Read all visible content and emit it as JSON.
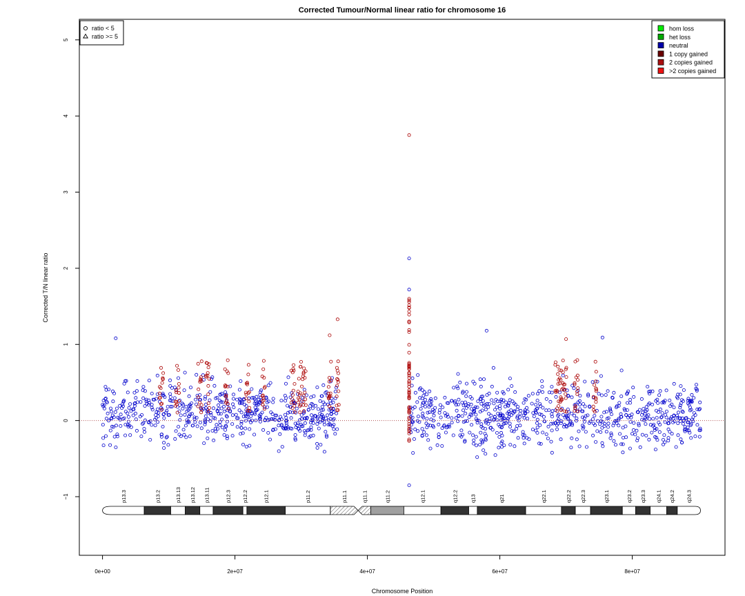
{
  "chart_data": {
    "type": "scatter",
    "title": "Corrected Tumour/Normal linear ratio for chromosome  16",
    "xlabel": "Chromosome Position",
    "ylabel": "Corrected T/N linear ratio",
    "xlim": [
      -3500000,
      94000000
    ],
    "ylim": [
      -1.77,
      5.27
    ],
    "x_ticks": [
      0,
      20000000,
      40000000,
      60000000,
      80000000
    ],
    "x_tick_labels": [
      "0e+00",
      "2e+07",
      "4e+07",
      "6e+07",
      "8e+07"
    ],
    "y_ticks": [
      -1,
      0,
      1,
      2,
      3,
      4,
      5
    ],
    "y_tick_labels": [
      "−1",
      "0",
      "1",
      "2",
      "3",
      "4",
      "5"
    ],
    "reference_line": 0,
    "grid": false,
    "shape_legend": {
      "position": "top-left",
      "entries": [
        {
          "symbol": "circle",
          "label": "ratio < 5"
        },
        {
          "symbol": "triangle",
          "label": "ratio >= 5"
        }
      ]
    },
    "color_legend": {
      "position": "top-right",
      "entries": [
        {
          "label": "hom loss",
          "color": "#00ee00"
        },
        {
          "label": "het loss",
          "color": "#00aa00"
        },
        {
          "label": "neutral",
          "color": "#0000aa"
        },
        {
          "label": "1 copy gained",
          "color": "#6b0000"
        },
        {
          "label": "2 copies gained",
          "color": "#aa1010"
        },
        {
          "label": ">2 copies gained",
          "color": "#ee1111"
        }
      ]
    },
    "series": [
      {
        "name": "neutral",
        "color": "#0000cc",
        "segments": [
          {
            "x": [
              0,
              35500000
            ],
            "y_typical": [
              -0.35,
              0.55
            ]
          },
          {
            "x": [
              46400000,
              90300000
            ],
            "y_typical": [
              -0.4,
              0.55
            ]
          }
        ]
      },
      {
        "name": "1 copy gained",
        "color": "#aa0000",
        "points": [
          {
            "x": 46300000,
            "y": 3.75
          },
          {
            "x": 46300000,
            "y": 1.6
          },
          {
            "x": 35500000,
            "y": 1.33
          },
          {
            "x": 34300000,
            "y": 1.12
          },
          {
            "x": 70000000,
            "y": 1.07
          }
        ]
      }
    ],
    "outliers_neutral": [
      {
        "x": 46300000,
        "y": 2.13
      },
      {
        "x": 46300000,
        "y": 1.72
      },
      {
        "x": 2000000,
        "y": 1.08
      },
      {
        "x": 58000000,
        "y": 1.18
      },
      {
        "x": 75500000,
        "y": 1.09
      },
      {
        "x": 46300000,
        "y": -0.85
      }
    ],
    "cytobands": [
      {
        "name": "p13.3",
        "start": 0,
        "end": 6300000,
        "stain": "gneg"
      },
      {
        "name": "p13.2",
        "start": 6300000,
        "end": 10300000,
        "stain": "gpos"
      },
      {
        "name": "p13.13",
        "start": 10300000,
        "end": 12500000,
        "stain": "gneg"
      },
      {
        "name": "p13.12",
        "start": 12500000,
        "end": 14700000,
        "stain": "gpos"
      },
      {
        "name": "p13.11",
        "start": 14700000,
        "end": 16700000,
        "stain": "gneg"
      },
      {
        "name": "p12.3",
        "start": 16700000,
        "end": 21200000,
        "stain": "gpos"
      },
      {
        "name": "p12.2",
        "start": 21200000,
        "end": 21800000,
        "stain": "gneg"
      },
      {
        "name": "p12.1",
        "start": 21800000,
        "end": 27600000,
        "stain": "gpos"
      },
      {
        "name": "p11.2",
        "start": 27600000,
        "end": 34400000,
        "stain": "gneg"
      },
      {
        "name": "p11.1",
        "start": 34400000,
        "end": 38600000,
        "stain": "acen"
      },
      {
        "name": "q11.1",
        "start": 38600000,
        "end": 40500000,
        "stain": "acen"
      },
      {
        "name": "q11.2",
        "start": 40500000,
        "end": 45500000,
        "stain": "gvar"
      },
      {
        "name": "q12.1",
        "start": 45500000,
        "end": 51100000,
        "stain": "gneg"
      },
      {
        "name": "q12.2",
        "start": 51100000,
        "end": 55300000,
        "stain": "gpos"
      },
      {
        "name": "q13",
        "start": 55300000,
        "end": 56600000,
        "stain": "gneg"
      },
      {
        "name": "q21",
        "start": 56600000,
        "end": 63900000,
        "stain": "gpos"
      },
      {
        "name": "q22.1",
        "start": 63900000,
        "end": 69300000,
        "stain": "gneg"
      },
      {
        "name": "q22.2",
        "start": 69300000,
        "end": 71400000,
        "stain": "gpos"
      },
      {
        "name": "q22.3",
        "start": 71400000,
        "end": 73700000,
        "stain": "gneg"
      },
      {
        "name": "q23.1",
        "start": 73700000,
        "end": 78500000,
        "stain": "gpos"
      },
      {
        "name": "q23.2",
        "start": 78500000,
        "end": 80500000,
        "stain": "gneg"
      },
      {
        "name": "q23.3",
        "start": 80500000,
        "end": 82700000,
        "stain": "gpos"
      },
      {
        "name": "q24.1",
        "start": 82700000,
        "end": 85200000,
        "stain": "gneg"
      },
      {
        "name": "q24.2",
        "start": 85200000,
        "end": 86800000,
        "stain": "gpos"
      },
      {
        "name": "q24.3",
        "start": 86800000,
        "end": 90300000,
        "stain": "gneg"
      }
    ]
  }
}
